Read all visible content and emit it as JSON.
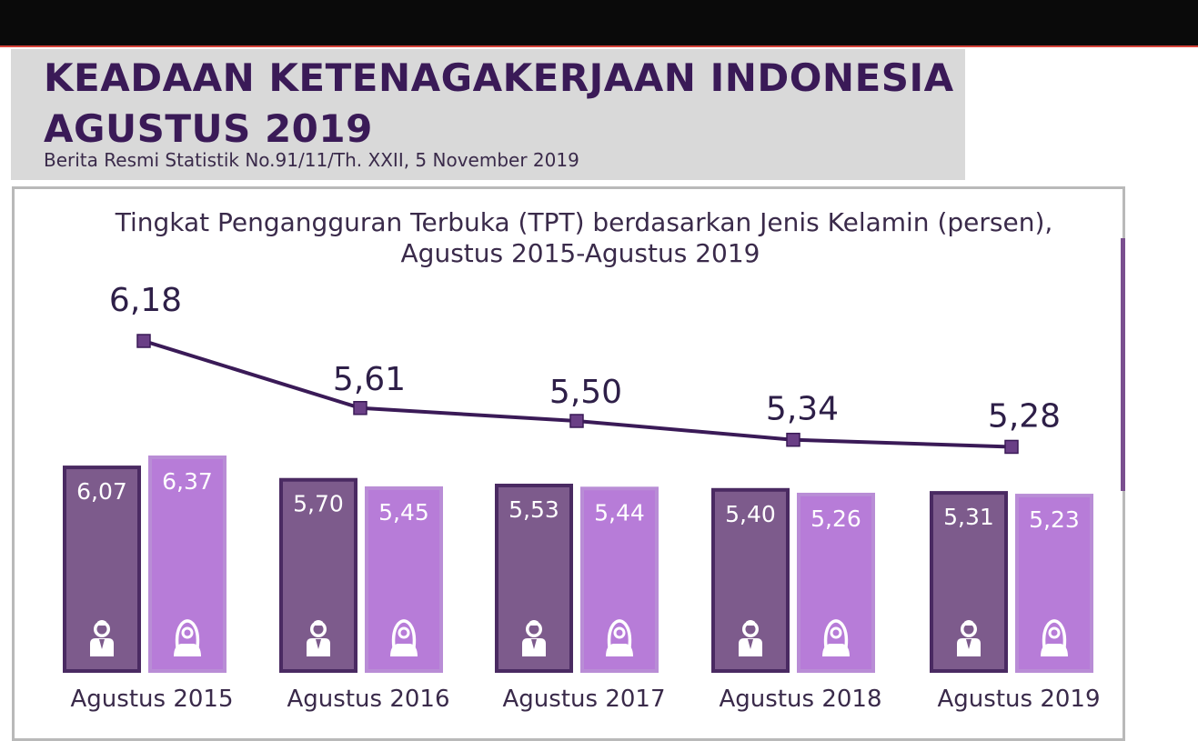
{
  "header": {
    "title_line1": "KEADAAN KETENAGAKERJAAN INDONESIA",
    "title_line2": "AGUSTUS 2019",
    "subtitle": "Berita Resmi Statistik No.91/11/Th. XXII, 5 November 2019"
  },
  "chart_data": {
    "type": "bar",
    "title": "Tingkat Pengangguran Terbuka (TPT) berdasarkan Jenis Kelamin (persen),",
    "subtitle": "Agustus 2015-Agustus 2019",
    "categories": [
      "Agustus 2015",
      "Agustus 2016",
      "Agustus 2017",
      "Agustus 2018",
      "Agustus 2019"
    ],
    "series": [
      {
        "values": [
          6.07,
          5.7,
          5.53,
          5.4,
          5.31
        ],
        "labels": [
          "6,07",
          "5,70",
          "5,53",
          "5,40",
          "5,31"
        ],
        "color": "#7d5b8c",
        "icon": "male-person-icon"
      },
      {
        "values": [
          6.37,
          5.45,
          5.44,
          5.26,
          5.23
        ],
        "labels": [
          "6,37",
          "5,45",
          "5,44",
          "5,26",
          "5,23"
        ],
        "color": "#b77cd8",
        "icon": "female-person-icon"
      }
    ],
    "line": {
      "values": [
        6.18,
        5.61,
        5.5,
        5.34,
        5.28
      ],
      "labels": [
        "6,18",
        "5,61",
        "5,50",
        "5,34",
        "5,28"
      ],
      "color": "#3a1a57"
    },
    "colors": {
      "male_border": "#4a2a62",
      "female_border": "#b98dd6",
      "line": "#3a1a57"
    },
    "grid": false,
    "legend": "none"
  }
}
